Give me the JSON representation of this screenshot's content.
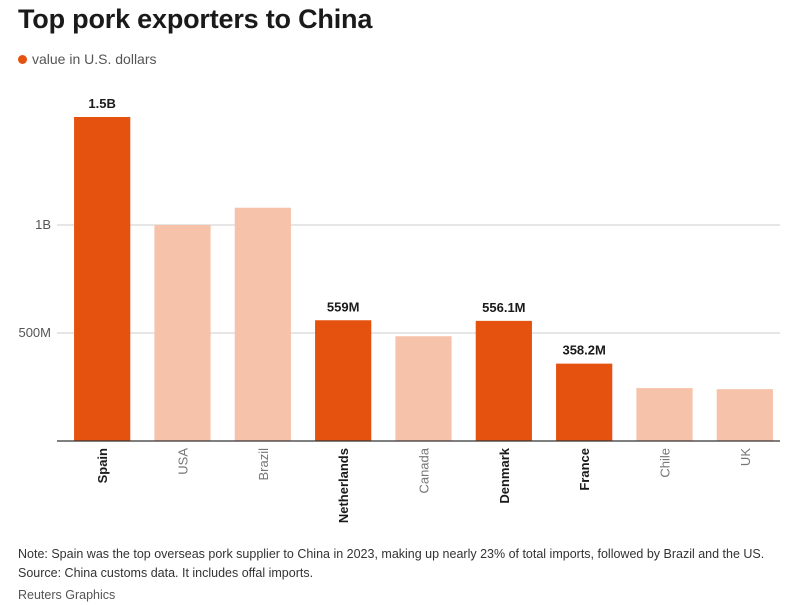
{
  "title": "Top pork exporters to China",
  "legend_label": "value in U.S. dollars",
  "colors": {
    "highlight": "#e5520f",
    "muted": "#f6c3aa",
    "grid": "#cccccc",
    "axis": "#333333"
  },
  "chart_data": {
    "type": "bar",
    "categories": [
      "Spain",
      "USA",
      "Brazil",
      "Netherlands",
      "Canada",
      "Denmark",
      "France",
      "Chile",
      "UK"
    ],
    "values": [
      1500000000,
      1000000000,
      1080000000,
      559000000,
      485000000,
      556100000,
      358200000,
      245000000,
      240000000
    ],
    "highlighted": [
      true,
      false,
      false,
      true,
      false,
      true,
      true,
      false,
      false
    ],
    "data_labels": [
      "1.5B",
      "",
      "",
      "559M",
      "",
      "556.1M",
      "358.2M",
      "",
      ""
    ],
    "y_ticks": [
      {
        "value": 500000000,
        "label": "500M"
      },
      {
        "value": 1000000000,
        "label": "1B"
      }
    ],
    "ylim": [
      0,
      1500000000
    ],
    "xlabel": "",
    "ylabel": "",
    "grid": true
  },
  "note": "Note: Spain was the top overseas pork supplier to China in 2023, making up nearly 23% of total imports, followed by Brazil and the US.",
  "source": "Source: China customs data. It includes offal imports.",
  "credit": "Reuters Graphics"
}
